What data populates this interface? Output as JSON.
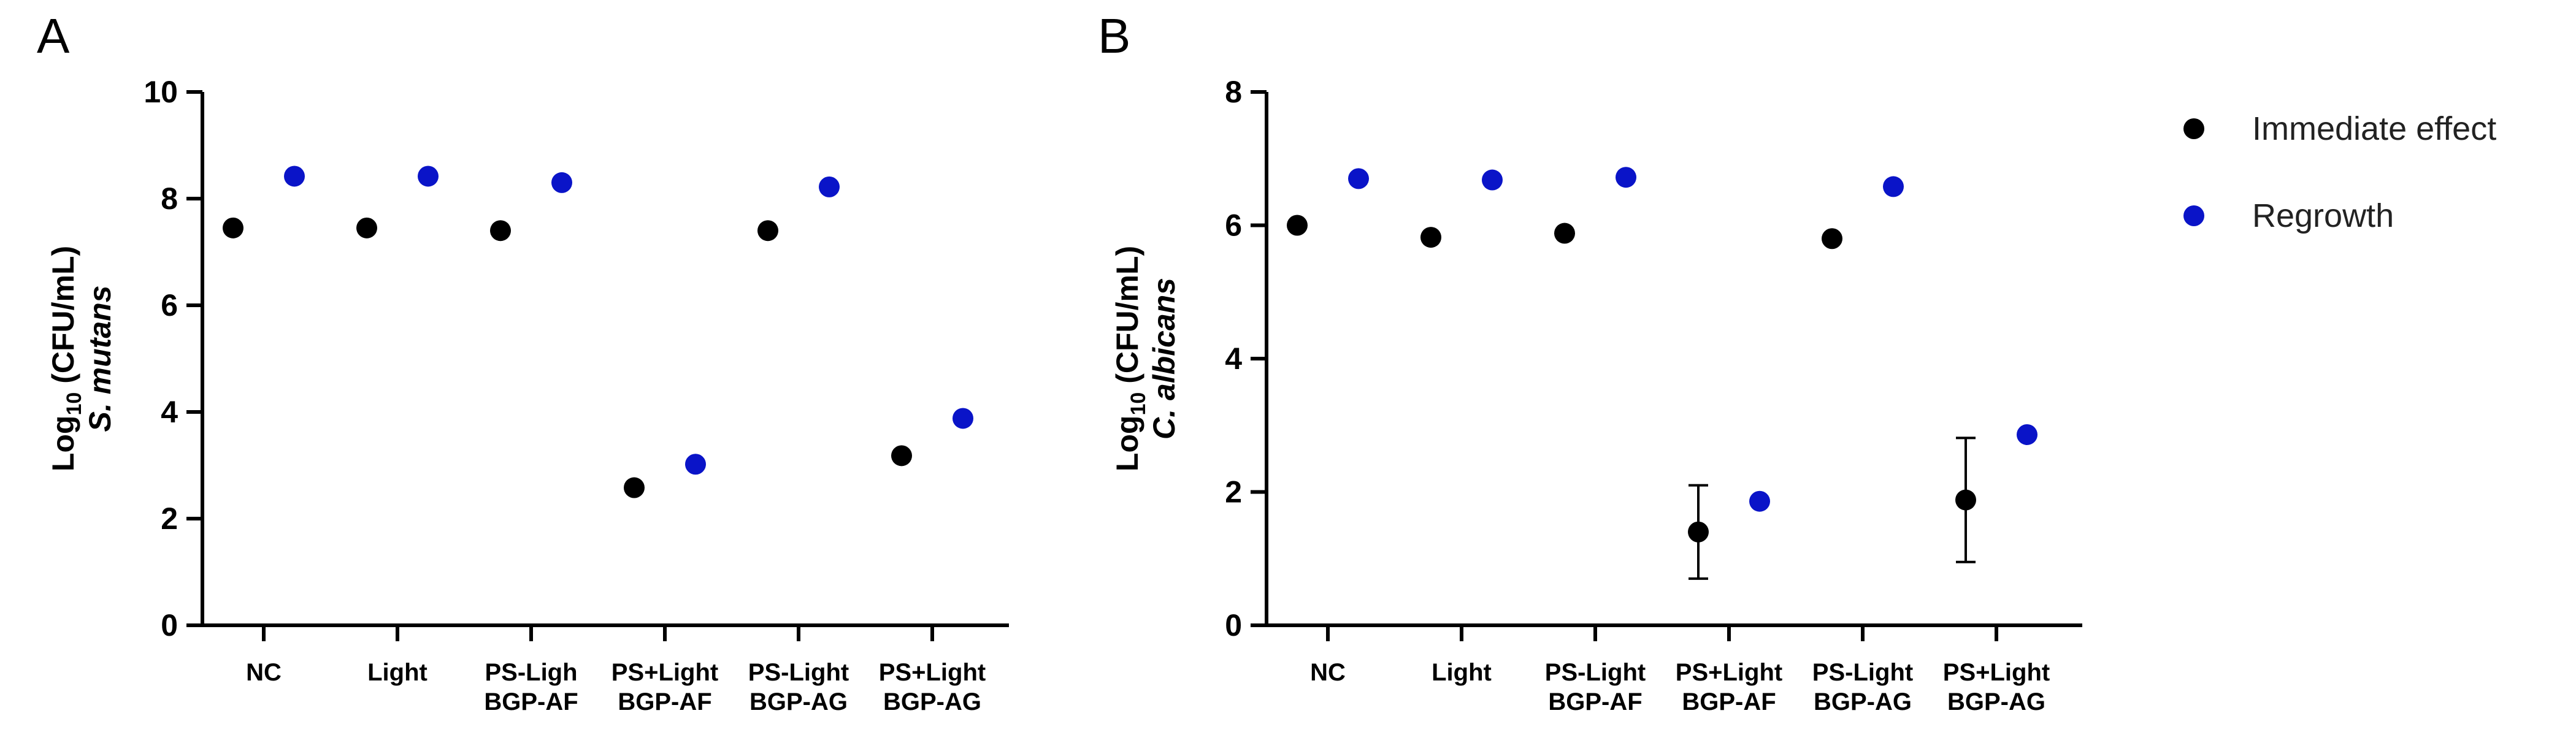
{
  "colors": {
    "axis": "#000000",
    "immediate": "#000000",
    "regrowth": "#0a14c8"
  },
  "legend": {
    "items": [
      {
        "label": "Immediate effect",
        "color": "#000000"
      },
      {
        "label": "Regrowth",
        "color": "#0a14c8"
      }
    ]
  },
  "chart_data": [
    {
      "type": "scatter",
      "panel": "A",
      "ylabel_main": "Log",
      "ylabel_sub": "10",
      "ylabel_rest": " (CFU/mL)",
      "ylabel_line2": "S. mutans",
      "ylim": [
        0,
        10
      ],
      "yticks": [
        0,
        2,
        4,
        6,
        8,
        10
      ],
      "categories": [
        [
          "NC"
        ],
        [
          "Light"
        ],
        [
          "PS-Ligh",
          "BGP-AF"
        ],
        [
          "PS+Light",
          "BGP-AF"
        ],
        [
          "PS-Light",
          "BGP-AG"
        ],
        [
          "PS+Light",
          "BGP-AG"
        ]
      ],
      "series": [
        {
          "name": "Immediate effect",
          "color": "#000000",
          "values": [
            7.45,
            7.45,
            7.4,
            2.58,
            7.4,
            3.18
          ],
          "errors": [
            0.06,
            0.05,
            0.05,
            0.15,
            0.05,
            0.15
          ]
        },
        {
          "name": "Regrowth",
          "color": "#0a14c8",
          "values": [
            8.42,
            8.42,
            8.3,
            3.02,
            8.22,
            3.88
          ],
          "errors": [
            0.05,
            0.05,
            0.1,
            0.1,
            0.08,
            0.05
          ]
        }
      ]
    },
    {
      "type": "scatter",
      "panel": "B",
      "ylabel_main": "Log",
      "ylabel_sub": "10",
      "ylabel_rest": " (CFU/mL)",
      "ylabel_line2": "C. albicans",
      "ylim": [
        0,
        8
      ],
      "yticks": [
        0,
        2,
        4,
        6,
        8
      ],
      "categories": [
        [
          "NC"
        ],
        [
          "Light"
        ],
        [
          "PS-Light",
          "BGP-AF"
        ],
        [
          "PS+Light",
          "BGP-AF"
        ],
        [
          "PS-Light",
          "BGP-AG"
        ],
        [
          "PS+Light",
          "BGP-AG"
        ]
      ],
      "series": [
        {
          "name": "Immediate effect",
          "color": "#000000",
          "values": [
            6.0,
            5.82,
            5.88,
            1.4,
            5.8,
            1.88
          ],
          "errors": [
            0.03,
            0.03,
            0.03,
            0.7,
            0.03,
            0.93
          ]
        },
        {
          "name": "Regrowth",
          "color": "#0a14c8",
          "values": [
            6.7,
            6.68,
            6.72,
            1.86,
            6.58,
            2.86
          ],
          "errors": [
            0.06,
            0.04,
            0.1,
            0.05,
            0.06,
            0.03
          ]
        }
      ]
    }
  ]
}
